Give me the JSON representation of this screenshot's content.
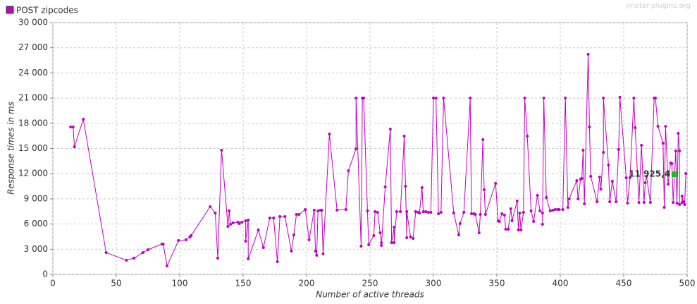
{
  "chart_data": {
    "type": "line",
    "watermark": "jmeter-plugins.org",
    "xlabel": "Number of active threads",
    "ylabel": "Response times in ms",
    "xlim": [
      0,
      500
    ],
    "ylim": [
      0,
      30000
    ],
    "xticks": [
      0,
      50,
      100,
      150,
      200,
      250,
      300,
      350,
      400,
      450,
      500
    ],
    "yticks": [
      0,
      {
        "value": 3000,
        "label": "3 000"
      },
      {
        "value": 6000,
        "label": "6 000"
      },
      {
        "value": 9000,
        "label": "9 000"
      },
      {
        "value": 12000,
        "label": "12 000"
      },
      {
        "value": 15000,
        "label": "15 000"
      },
      {
        "value": 18000,
        "label": "18 000"
      },
      {
        "value": 21000,
        "label": "21 000"
      },
      {
        "value": 24000,
        "label": "24 000"
      },
      {
        "value": 27000,
        "label": "27 000"
      },
      {
        "value": 30000,
        "label": "30 000"
      }
    ],
    "grid": true,
    "legend": "top-left",
    "annotation": {
      "label": "11 925,4",
      "x": 490,
      "value": 11925.4,
      "color": "#22bb22"
    },
    "x": [
      14,
      16,
      17,
      24,
      42,
      58,
      64,
      71,
      75,
      86,
      87,
      90,
      99,
      105,
      108,
      109,
      124,
      128,
      130,
      133,
      138,
      139,
      140,
      142,
      146,
      147,
      149,
      152,
      152,
      154,
      154,
      162,
      166,
      171,
      174,
      177,
      179,
      183,
      188,
      190,
      192,
      194,
      199,
      202,
      206,
      207,
      208,
      209,
      211,
      212,
      213,
      218,
      224,
      231,
      233,
      239,
      239,
      243,
      244,
      245,
      248,
      249,
      253,
      254,
      256,
      258,
      259,
      259,
      262,
      266,
      267,
      269,
      269,
      271,
      274,
      277,
      278,
      279,
      279,
      282,
      284,
      286,
      288,
      289,
      291,
      292,
      294,
      296,
      298,
      300,
      302,
      304,
      306,
      308,
      316,
      320,
      321,
      324,
      329,
      330,
      332,
      333,
      336,
      337,
      339,
      340,
      341,
      349,
      351,
      352,
      354,
      356,
      357,
      359,
      361,
      362,
      366,
      367,
      368,
      369,
      371,
      372,
      374,
      377,
      379,
      382,
      384,
      386,
      386,
      387,
      389,
      392,
      394,
      396,
      398,
      399,
      402,
      404,
      406,
      407,
      413,
      414,
      416,
      417,
      418,
      419,
      422,
      423,
      424,
      429,
      431,
      432,
      434,
      434,
      438,
      439,
      441,
      444,
      446,
      447,
      452,
      453,
      455,
      458,
      459,
      462,
      464,
      466,
      467,
      468,
      471,
      474,
      475,
      477,
      481,
      482,
      483,
      485,
      487,
      488,
      489,
      491,
      492,
      493,
      494,
      494,
      496,
      496,
      497,
      498,
      499
    ],
    "series": [
      {
        "name": "POST zipcodes",
        "color": "#c000c0",
        "values": [
          17560,
          17560,
          15200,
          18490,
          2600,
          1680,
          1930,
          2600,
          2940,
          3610,
          3600,
          1000,
          4030,
          4120,
          4450,
          4620,
          8070,
          7310,
          1930,
          14790,
          5710,
          7560,
          5970,
          6130,
          6220,
          6050,
          6220,
          6390,
          3950,
          6470,
          1850,
          5290,
          3190,
          6720,
          6720,
          1510,
          6890,
          6890,
          2770,
          4710,
          7140,
          7140,
          7730,
          4120,
          7650,
          2770,
          2270,
          7560,
          7650,
          7650,
          2440,
          16720,
          7650,
          7730,
          12350,
          14960,
          21010,
          3360,
          21010,
          21010,
          7560,
          3530,
          4620,
          7480,
          7390,
          4960,
          3780,
          3450,
          10420,
          17310,
          3780,
          5630,
          3780,
          7480,
          7480,
          16470,
          10500,
          4370,
          7480,
          4450,
          4290,
          7480,
          7390,
          7310,
          10340,
          7480,
          7480,
          7390,
          7390,
          21010,
          21010,
          7230,
          7390,
          21010,
          7310,
          4710,
          6050,
          7390,
          21010,
          7230,
          7230,
          7140,
          4960,
          7140,
          16050,
          10080,
          7140,
          10840,
          6390,
          6300,
          7230,
          7060,
          5380,
          5380,
          7820,
          6390,
          8740,
          5290,
          7310,
          5290,
          7390,
          21010,
          16470,
          7560,
          6300,
          9410,
          7560,
          7310,
          5970,
          21010,
          9160,
          7560,
          7650,
          7730,
          7730,
          7730,
          7730,
          21010,
          7980,
          8990,
          11180,
          8990,
          11340,
          11430,
          14790,
          8400,
          26220,
          17560,
          11680,
          8660,
          11600,
          10170,
          14540,
          21010,
          13030,
          8660,
          11090,
          8660,
          14870,
          21090,
          11510,
          8490,
          11510,
          21010,
          17480,
          8570,
          15380,
          8570,
          10920,
          11680,
          8570,
          21010,
          21010,
          17650,
          15630,
          7980,
          17650,
          10760,
          13280,
          13190,
          8570,
          14710,
          8490,
          16810,
          14710,
          8320,
          8570,
          9330,
          8660,
          8320,
          12020
        ]
      }
    ]
  }
}
